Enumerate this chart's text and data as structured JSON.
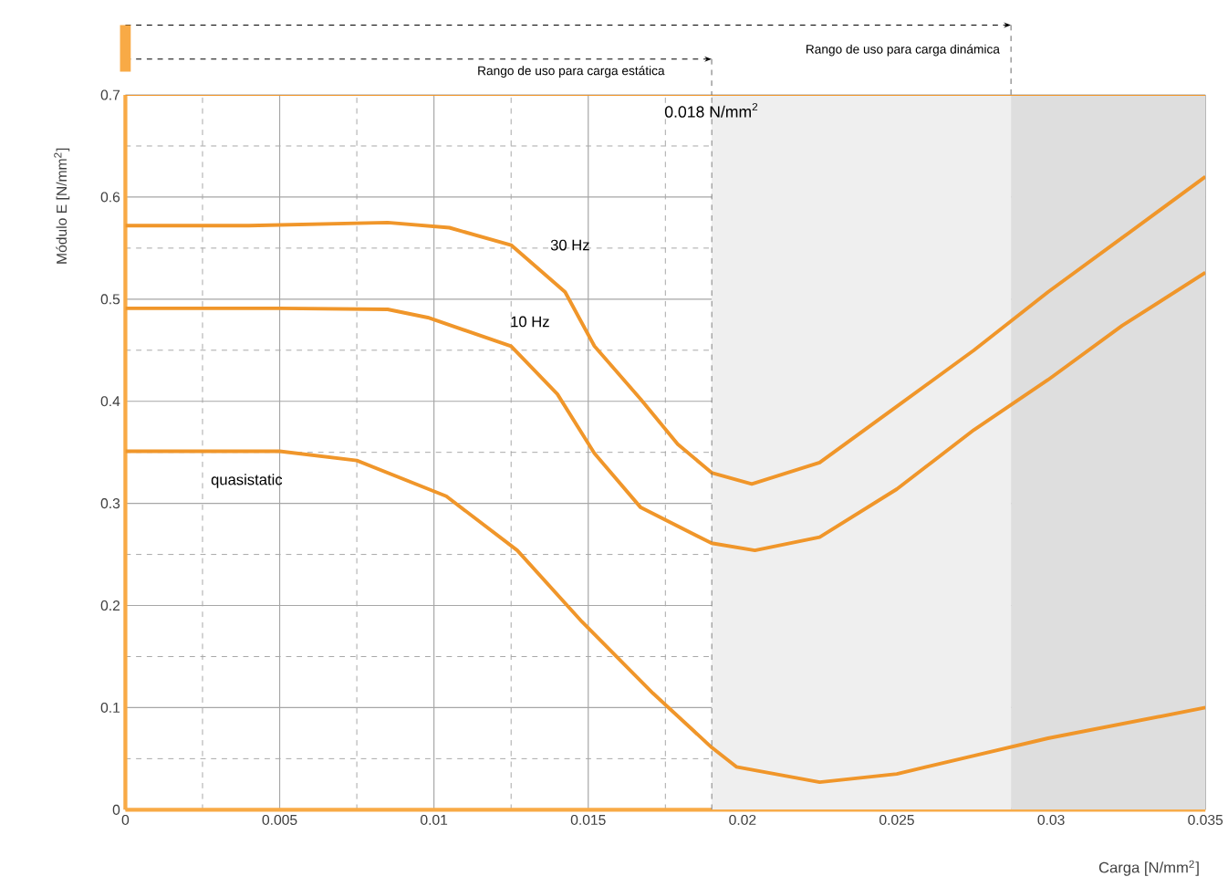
{
  "chart_data": {
    "type": "line",
    "xlabel": "Carga  [N/mm$^{2}$]",
    "ylabel": "Módulo E [N/mm$^{2}$]",
    "xlim": [
      0,
      0.035
    ],
    "ylim": [
      0,
      0.7
    ],
    "xticks": [
      0,
      0.005,
      0.01,
      0.015,
      0.02,
      0.025,
      0.03,
      0.035
    ],
    "yticks": [
      0,
      0.1,
      0.2,
      0.3,
      0.4,
      0.5,
      0.6,
      0.7
    ],
    "grid": true,
    "legend": false,
    "marker": "none",
    "line_style": "solid",
    "bands": [
      {
        "axis": "x",
        "from": 0.019,
        "to": 0.0287,
        "color": "#efefef"
      },
      {
        "axis": "x",
        "from": 0.0287,
        "to": 0.035,
        "color": "#dedede"
      }
    ],
    "ref_lines": [
      {
        "axis": "x",
        "value": 0.019,
        "color": "#666666",
        "line_style": "dashed"
      }
    ],
    "annotations": [
      "Rango de uso para carga estática",
      "Rango de uso para carga dinámica",
      "0.018 N/mm$^{2}$"
    ],
    "series": [
      {
        "name": "30 Hz",
        "color": "#f0962a",
        "x": [
          0,
          0.004,
          0.0085,
          0.0105,
          0.0125,
          0.01425,
          0.0152,
          0.0167,
          0.0179,
          0.019,
          0.0203,
          0.0225,
          0.025,
          0.0275,
          0.0299,
          0.0323,
          0.035
        ],
        "values": [
          0.572,
          0.572,
          0.575,
          0.57,
          0.553,
          0.507,
          0.454,
          0.402,
          0.358,
          0.33,
          0.319,
          0.34,
          0.395,
          0.45,
          0.507,
          0.56,
          0.62
        ]
      },
      {
        "name": "10 Hz",
        "color": "#f0962a",
        "x": [
          0,
          0.005,
          0.0085,
          0.0098,
          0.0125,
          0.014,
          0.0152,
          0.0167,
          0.019,
          0.0204,
          0.0225,
          0.025,
          0.0275,
          0.0299,
          0.0323,
          0.035
        ],
        "values": [
          0.491,
          0.491,
          0.49,
          0.482,
          0.454,
          0.407,
          0.349,
          0.296,
          0.261,
          0.254,
          0.267,
          0.314,
          0.372,
          0.421,
          0.474,
          0.526
        ]
      },
      {
        "name": "quasistatic",
        "color": "#f0962a",
        "x": [
          0,
          0.005,
          0.0075,
          0.0104,
          0.0127,
          0.0148,
          0.0171,
          0.019,
          0.0198,
          0.0225,
          0.025,
          0.0275,
          0.0299,
          0.035
        ],
        "values": [
          0.351,
          0.351,
          0.342,
          0.307,
          0.254,
          0.184,
          0.114,
          0.061,
          0.042,
          0.027,
          0.035,
          0.053,
          0.07,
          0.1
        ]
      }
    ]
  }
}
